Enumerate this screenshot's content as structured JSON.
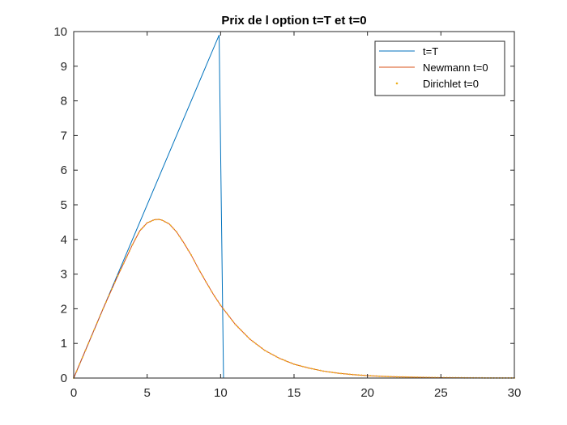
{
  "chart_data": {
    "type": "line",
    "title": "Prix de l option t=T et t=0",
    "xlabel": "",
    "ylabel": "",
    "xlim": [
      0,
      30
    ],
    "ylim": [
      0,
      10
    ],
    "xticks": [
      0,
      5,
      10,
      15,
      20,
      25,
      30
    ],
    "yticks": [
      0,
      1,
      2,
      3,
      4,
      5,
      6,
      7,
      8,
      9,
      10
    ],
    "grid": false,
    "legend_position": "top-right",
    "series": [
      {
        "name": "t=T",
        "style": "line",
        "color": "#0072BD",
        "x": [
          0,
          9.9,
          10.2,
          30
        ],
        "y": [
          0,
          9.9,
          0,
          0
        ]
      },
      {
        "name": "Newmann t=0",
        "style": "line",
        "color": "#D95319",
        "x": [
          0,
          1,
          2,
          3,
          3.5,
          4,
          4.5,
          5,
          5.5,
          5.8,
          6,
          6.5,
          7,
          7.5,
          8,
          8.5,
          9,
          9.5,
          10,
          11,
          12,
          13,
          14,
          15,
          16,
          17,
          18,
          19,
          20,
          21,
          22,
          23,
          24,
          25,
          26,
          27,
          28,
          29,
          30
        ],
        "y": [
          0,
          1.0,
          2.0,
          2.95,
          3.4,
          3.85,
          4.25,
          4.48,
          4.57,
          4.58,
          4.56,
          4.45,
          4.22,
          3.9,
          3.55,
          3.15,
          2.78,
          2.42,
          2.1,
          1.55,
          1.12,
          0.8,
          0.57,
          0.4,
          0.29,
          0.2,
          0.14,
          0.1,
          0.07,
          0.05,
          0.035,
          0.025,
          0.018,
          0.012,
          0.009,
          0.006,
          0.004,
          0.003,
          0.002
        ]
      },
      {
        "name": "Dirichlet t=0",
        "style": "dots",
        "color": "#EDB120",
        "x": [
          0,
          1,
          2,
          3,
          3.5,
          4,
          4.5,
          5,
          5.5,
          5.8,
          6,
          6.5,
          7,
          7.5,
          8,
          8.5,
          9,
          9.5,
          10,
          11,
          12,
          13,
          14,
          15,
          16,
          17,
          18,
          19,
          20,
          21,
          22,
          23,
          24,
          25,
          26,
          27,
          28,
          29,
          30
        ],
        "y": [
          0,
          1.0,
          2.0,
          2.95,
          3.4,
          3.85,
          4.25,
          4.48,
          4.57,
          4.58,
          4.56,
          4.45,
          4.22,
          3.9,
          3.55,
          3.15,
          2.78,
          2.42,
          2.1,
          1.55,
          1.12,
          0.8,
          0.57,
          0.4,
          0.29,
          0.2,
          0.14,
          0.1,
          0.07,
          0.05,
          0.035,
          0.025,
          0.018,
          0.012,
          0.009,
          0.006,
          0.004,
          0.003,
          0.002
        ]
      }
    ]
  }
}
